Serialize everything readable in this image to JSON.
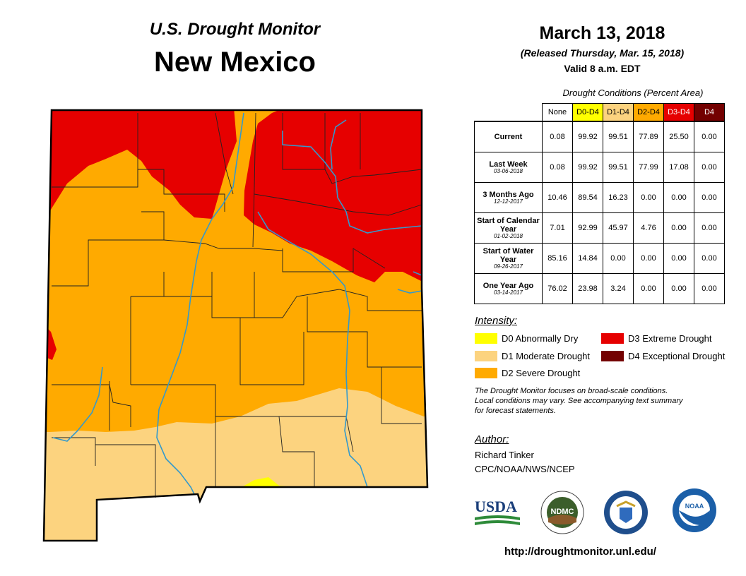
{
  "header": {
    "subtitle": "U.S. Drought Monitor",
    "title": "New Mexico",
    "date": "March 13, 2018",
    "released": "(Released Thursday, Mar. 15, 2018)",
    "valid": "Valid 8 a.m. EDT"
  },
  "table": {
    "caption": "Drought Conditions (Percent Area)",
    "columns": [
      {
        "label": "None",
        "color": "#ffffff"
      },
      {
        "label": "D0-D4",
        "color": "#ffff00"
      },
      {
        "label": "D1-D4",
        "color": "#fcd37f"
      },
      {
        "label": "D2-D4",
        "color": "#ffaa00"
      },
      {
        "label": "D3-D4",
        "color": "#e60000"
      },
      {
        "label": "D4",
        "color": "#730000"
      }
    ],
    "rows": [
      {
        "label": "Current",
        "date": "",
        "values": [
          "0.08",
          "99.92",
          "99.51",
          "77.89",
          "25.50",
          "0.00"
        ]
      },
      {
        "label": "Last Week",
        "date": "03-06-2018",
        "values": [
          "0.08",
          "99.92",
          "99.51",
          "77.99",
          "17.08",
          "0.00"
        ]
      },
      {
        "label": "3 Months Ago",
        "date": "12-12-2017",
        "values": [
          "10.46",
          "89.54",
          "16.23",
          "0.00",
          "0.00",
          "0.00"
        ]
      },
      {
        "label": "Start of Calendar Year",
        "date": "01-02-2018",
        "values": [
          "7.01",
          "92.99",
          "45.97",
          "4.76",
          "0.00",
          "0.00"
        ]
      },
      {
        "label": "Start of Water Year",
        "date": "09-26-2017",
        "values": [
          "85.16",
          "14.84",
          "0.00",
          "0.00",
          "0.00",
          "0.00"
        ]
      },
      {
        "label": "One Year Ago",
        "date": "03-14-2017",
        "values": [
          "76.02",
          "23.98",
          "3.24",
          "0.00",
          "0.00",
          "0.00"
        ]
      }
    ]
  },
  "legend": {
    "title": "Intensity:",
    "items": [
      {
        "label": "D0 Abnormally Dry",
        "color": "#ffff00"
      },
      {
        "label": "D1 Moderate Drought",
        "color": "#fcd37f"
      },
      {
        "label": "D2 Severe Drought",
        "color": "#ffaa00"
      },
      {
        "label": "D3 Extreme Drought",
        "color": "#e60000"
      },
      {
        "label": "D4 Exceptional Drought",
        "color": "#730000"
      }
    ]
  },
  "note": {
    "line1": "The Drought Monitor focuses on broad-scale conditions.",
    "line2": "Local conditions may vary. See accompanying text summary",
    "line3": "for forecast statements."
  },
  "author": {
    "title": "Author:",
    "name": "Richard Tinker",
    "org": "CPC/NOAA/NWS/NCEP"
  },
  "logos": {
    "usda": "USDA",
    "ndmc": "NDMC",
    "noaa": "NOAA"
  },
  "url": "http://droughtmonitor.unl.edu/",
  "map": {
    "state": "New Mexico",
    "colors": {
      "d0": "#ffff00",
      "d1": "#fcd37f",
      "d2": "#ffaa00",
      "d3": "#e60000",
      "river": "#3399cc",
      "border": "#000000"
    }
  }
}
